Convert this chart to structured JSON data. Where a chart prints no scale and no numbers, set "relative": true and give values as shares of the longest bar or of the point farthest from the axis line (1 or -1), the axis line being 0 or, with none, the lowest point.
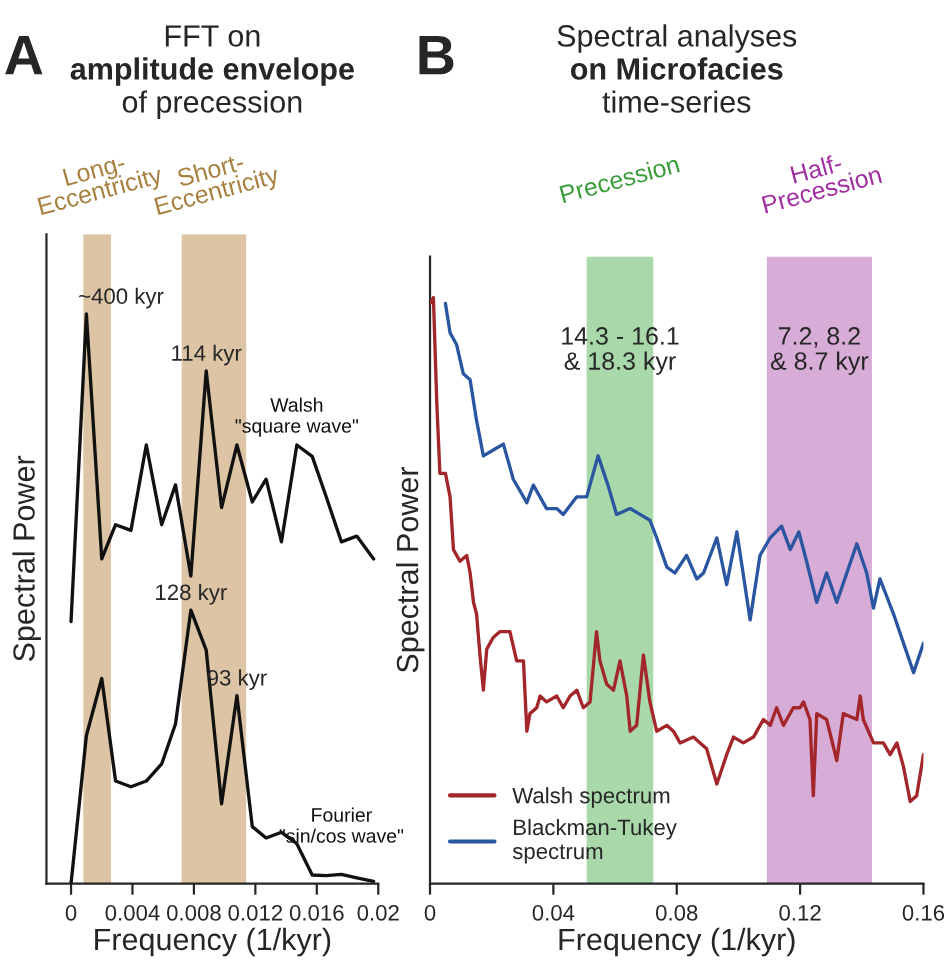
{
  "chart_data": [
    {
      "type": "line",
      "title": "FFT on\namplitude envelope\nof precession",
      "xlabel": "Frequency (1/kyr)",
      "ylabel": "Spectral Power",
      "relative": true,
      "xlim": [
        -0.0016,
        0.02
      ],
      "xticks": [
        0,
        0.004,
        0.008,
        0.012,
        0.016,
        0.02
      ],
      "grid": false,
      "legend": false,
      "marker": "none",
      "line_style": "solid",
      "series": [
        {
          "name": "Walsh\n\"square wave\"",
          "color": "#111111",
          "x": [
            0,
            0.001,
            0.002,
            0.0029,
            0.0039,
            0.0049,
            0.0059,
            0.0068,
            0.0078,
            0.0088,
            0.0098,
            0.0108,
            0.0118,
            0.0127,
            0.0137,
            0.0147,
            0.0157,
            0.0166,
            0.0176,
            0.0186,
            0.0197
          ],
          "values": [
            0.46,
            1.0,
            0.57,
            0.63,
            0.62,
            0.77,
            0.63,
            0.7,
            0.54,
            0.9,
            0.66,
            0.77,
            0.67,
            0.71,
            0.6,
            0.77,
            0.75,
            0.68,
            0.6,
            0.61,
            0.57
          ]
        },
        {
          "name": "Fourier\n\"sin/cos wave\"",
          "color": "#111111",
          "x": [
            0,
            0.001,
            0.002,
            0.0029,
            0.0039,
            0.0049,
            0.0059,
            0.0068,
            0.0078,
            0.0088,
            0.0098,
            0.0108,
            0.0118,
            0.0127,
            0.0137,
            0.0147,
            0.0157,
            0.0166,
            0.0176,
            0.0186,
            0.0197
          ],
          "values": [
            0,
            0.26,
            0.36,
            0.18,
            0.17,
            0.18,
            0.21,
            0.28,
            0.48,
            0.41,
            0.14,
            0.33,
            0.1,
            0.08,
            0.09,
            0.07,
            0.015,
            0.014,
            0.016,
            0.01,
            0.004
          ]
        }
      ],
      "bands": [
        {
          "axis": "x",
          "from": 0.0008,
          "to": 0.0026,
          "label": "Long-\nEccentricity",
          "color": "#dcc4a4"
        },
        {
          "axis": "x",
          "from": 0.0072,
          "to": 0.0114,
          "label": "Short-\nEccentricity",
          "color": "#dcc4a4"
        }
      ],
      "annotations": [
        "A",
        {
          "text": "~400 kyr",
          "x": 0.001,
          "y": 1.0
        },
        {
          "text": "114 kyr",
          "x": 0.0088,
          "y": 0.9
        },
        {
          "text": "128 kyr",
          "x": 0.0078,
          "y": 0.48
        },
        {
          "text": "93 kyr",
          "x": 0.0108,
          "y": 0.33
        }
      ]
    },
    {
      "type": "line",
      "title": "Spectral analyses\non Microfacies\ntime-series",
      "xlabel": "Frequency (1/kyr)",
      "ylabel": "Spectral Power",
      "relative": true,
      "xlim": [
        0,
        0.16
      ],
      "xticks": [
        0,
        0.04,
        0.08,
        0.12,
        0.16
      ],
      "grid": false,
      "legend": "bottom left",
      "marker": "none",
      "line_style": "solid",
      "series": [
        {
          "name": "Walsh spectrum",
          "color": "#a3262a",
          "x": [
            0,
            0.0011,
            0.0022,
            0.0032,
            0.005,
            0.0065,
            0.0076,
            0.0097,
            0.0119,
            0.013,
            0.0141,
            0.0151,
            0.0162,
            0.0173,
            0.0184,
            0.0205,
            0.0227,
            0.0259,
            0.0281,
            0.0303,
            0.0314,
            0.0324,
            0.0346,
            0.0357,
            0.0378,
            0.0411,
            0.0432,
            0.0454,
            0.0476,
            0.0497,
            0.0519,
            0.054,
            0.0551,
            0.0573,
            0.0595,
            0.0616,
            0.0638,
            0.0649,
            0.067,
            0.0692,
            0.0713,
            0.0735,
            0.0768,
            0.0789,
            0.0811,
            0.0854,
            0.0897,
            0.0919,
            0.093,
            0.0962,
            0.0984,
            0.1016,
            0.1049,
            0.1081,
            0.1103,
            0.1124,
            0.1146,
            0.1178,
            0.12,
            0.1211,
            0.1232,
            0.1243,
            0.1254,
            0.1286,
            0.1319,
            0.134,
            0.1384,
            0.1395,
            0.1405,
            0.1438,
            0.147,
            0.1492,
            0.1514,
            0.1535,
            0.1557,
            0.1578,
            0.16
          ],
          "values": [
            0.99,
            1.0,
            0.82,
            0.7,
            0.7,
            0.66,
            0.57,
            0.55,
            0.56,
            0.53,
            0.48,
            0.46,
            0.39,
            0.33,
            0.4,
            0.42,
            0.43,
            0.43,
            0.38,
            0.38,
            0.26,
            0.29,
            0.3,
            0.32,
            0.31,
            0.32,
            0.3,
            0.32,
            0.33,
            0.3,
            0.31,
            0.43,
            0.38,
            0.34,
            0.33,
            0.38,
            0.32,
            0.26,
            0.27,
            0.39,
            0.31,
            0.26,
            0.27,
            0.26,
            0.24,
            0.25,
            0.23,
            0.19,
            0.17,
            0.22,
            0.25,
            0.24,
            0.25,
            0.28,
            0.27,
            0.3,
            0.27,
            0.3,
            0.3,
            0.31,
            0.28,
            0.15,
            0.29,
            0.28,
            0.21,
            0.29,
            0.28,
            0.32,
            0.28,
            0.24,
            0.24,
            0.22,
            0.24,
            0.2,
            0.14,
            0.15,
            0.22
          ]
        },
        {
          "name": "Blackman-Tukey\nspectrum",
          "color": "#2a55a0",
          "x": [
            0.005,
            0.0065,
            0.0086,
            0.0108,
            0.013,
            0.0151,
            0.0173,
            0.0205,
            0.0238,
            0.027,
            0.0314,
            0.0335,
            0.0378,
            0.0411,
            0.0432,
            0.0476,
            0.0508,
            0.0545,
            0.0577,
            0.0605,
            0.0649,
            0.0681,
            0.0713,
            0.0735,
            0.0768,
            0.0794,
            0.0832,
            0.0865,
            0.0887,
            0.093,
            0.0962,
            0.0995,
            0.1038,
            0.107,
            0.1103,
            0.114,
            0.1168,
            0.1196,
            0.1221,
            0.1254,
            0.1286,
            0.1319,
            0.1384,
            0.1416,
            0.1438,
            0.1459,
            0.1503,
            0.1568,
            0.16
          ],
          "values": [
            0.99,
            0.94,
            0.92,
            0.87,
            0.86,
            0.79,
            0.73,
            0.74,
            0.75,
            0.69,
            0.65,
            0.68,
            0.64,
            0.64,
            0.63,
            0.66,
            0.66,
            0.73,
            0.68,
            0.63,
            0.64,
            0.63,
            0.62,
            0.59,
            0.54,
            0.53,
            0.56,
            0.52,
            0.53,
            0.59,
            0.51,
            0.6,
            0.45,
            0.56,
            0.59,
            0.61,
            0.57,
            0.6,
            0.55,
            0.48,
            0.53,
            0.48,
            0.58,
            0.53,
            0.47,
            0.52,
            0.46,
            0.36,
            0.41
          ]
        }
      ],
      "bands": [
        {
          "axis": "x",
          "from": 0.0508,
          "to": 0.0724,
          "label": "Precession",
          "color": "#a9d9aa"
        },
        {
          "axis": "x",
          "from": 0.1092,
          "to": 0.1433,
          "label": "Half-\nPrecession",
          "color": "#d7acd6"
        }
      ],
      "annotations": [
        "B",
        "14.3 - 16.1\n& 18.3 kyr",
        "7.2, 8.2\n& 8.7 kyr"
      ]
    }
  ]
}
